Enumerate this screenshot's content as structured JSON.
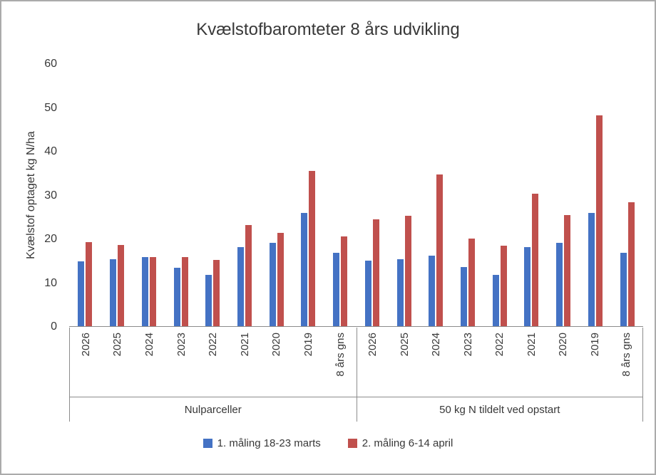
{
  "chart_data": {
    "type": "bar",
    "title": "Kvælstofbaromteter 8 års udvikling",
    "ylabel": "Kvælstof optaget kg N/ha",
    "xlabel": "",
    "ylim": [
      0,
      60
    ],
    "ytick_step": 10,
    "grid": false,
    "legend_position": "bottom",
    "legend": [
      {
        "name": "1. måling 18-23 marts",
        "color": "#4472C4"
      },
      {
        "name": "2. måling 6-14 april",
        "color": "#C0504D"
      }
    ],
    "categories": [
      "2026",
      "2025",
      "2024",
      "2023",
      "2022",
      "2021",
      "2020",
      "2019",
      "8 års gns"
    ],
    "groups": [
      {
        "label": "Nulparceller",
        "series": [
          {
            "name": "1. måling 18-23 marts",
            "values": [
              14.9,
              15.3,
              15.8,
              13.4,
              11.7,
              18.1,
              19.1,
              26.0,
              16.8
            ]
          },
          {
            "name": "2. måling 6-14 april",
            "values": [
              19.2,
              18.6,
              15.8,
              15.8,
              15.1,
              23.2,
              21.3,
              35.5,
              20.5
            ]
          }
        ]
      },
      {
        "label": "50 kg N tildelt ved opstart",
        "series": [
          {
            "name": "1. måling 18-23 marts",
            "values": [
              15.0,
              15.3,
              16.1,
              13.5,
              11.7,
              18.1,
              19.1,
              26.0,
              16.8
            ]
          },
          {
            "name": "2. måling 6-14 april",
            "values": [
              24.4,
              25.2,
              34.8,
              20.0,
              18.5,
              30.4,
              25.4,
              48.2,
              28.3
            ]
          }
        ]
      }
    ]
  }
}
